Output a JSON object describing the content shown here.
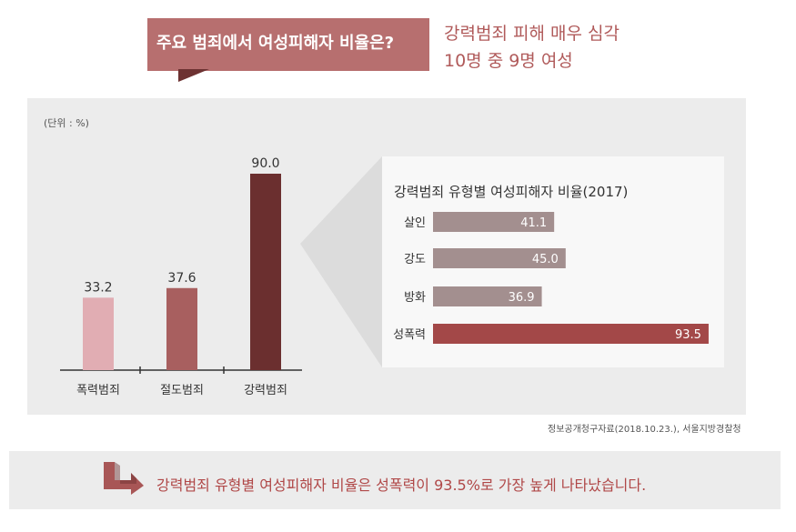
{
  "header": {
    "banner_text": "주요 범죄에서 여성피해자 비율은?",
    "subheading_line1": "강력범죄 피해 매우 심각",
    "subheading_line2": "10명 중 9명 여성"
  },
  "colors": {
    "banner": "#b76f6f",
    "accent_dark": "#6d3232",
    "accent_text": "#b05a5a",
    "bar_light": "#e1adb3",
    "bar_mid": "#a85f5f",
    "bar_dark": "#6b2f2f",
    "hbar_gray": "#a38f8f",
    "hbar_highlight": "#a34848"
  },
  "unit_label": "(단위 : %)",
  "chart_data": [
    {
      "type": "bar",
      "title": "",
      "categories": [
        "폭력범죄",
        "절도범죄",
        "강력범죄"
      ],
      "values": [
        33.2,
        37.6,
        90.0
      ],
      "value_labels": [
        "33.2",
        "37.6",
        "90.0"
      ],
      "ylim": [
        0,
        100
      ],
      "xlabel": "",
      "ylabel": ""
    },
    {
      "type": "bar",
      "orientation": "horizontal",
      "title": "강력범죄 유형별 여성피해자 비율(2017)",
      "categories": [
        "살인",
        "강도",
        "방화",
        "성폭력"
      ],
      "values": [
        41.1,
        45.0,
        36.9,
        93.5
      ],
      "value_labels": [
        "41.1",
        "45.0",
        "36.9",
        "93.5"
      ],
      "xlim": [
        0,
        100
      ],
      "highlight": "성폭력"
    }
  ],
  "source": "정보공개청구자료(2018.10.23.), 서울지방경찰청",
  "footer": {
    "text": "강력범죄 유형별 여성피해자 비율은 성폭력이 93.5%로 가장 높게 나타났습니다."
  }
}
